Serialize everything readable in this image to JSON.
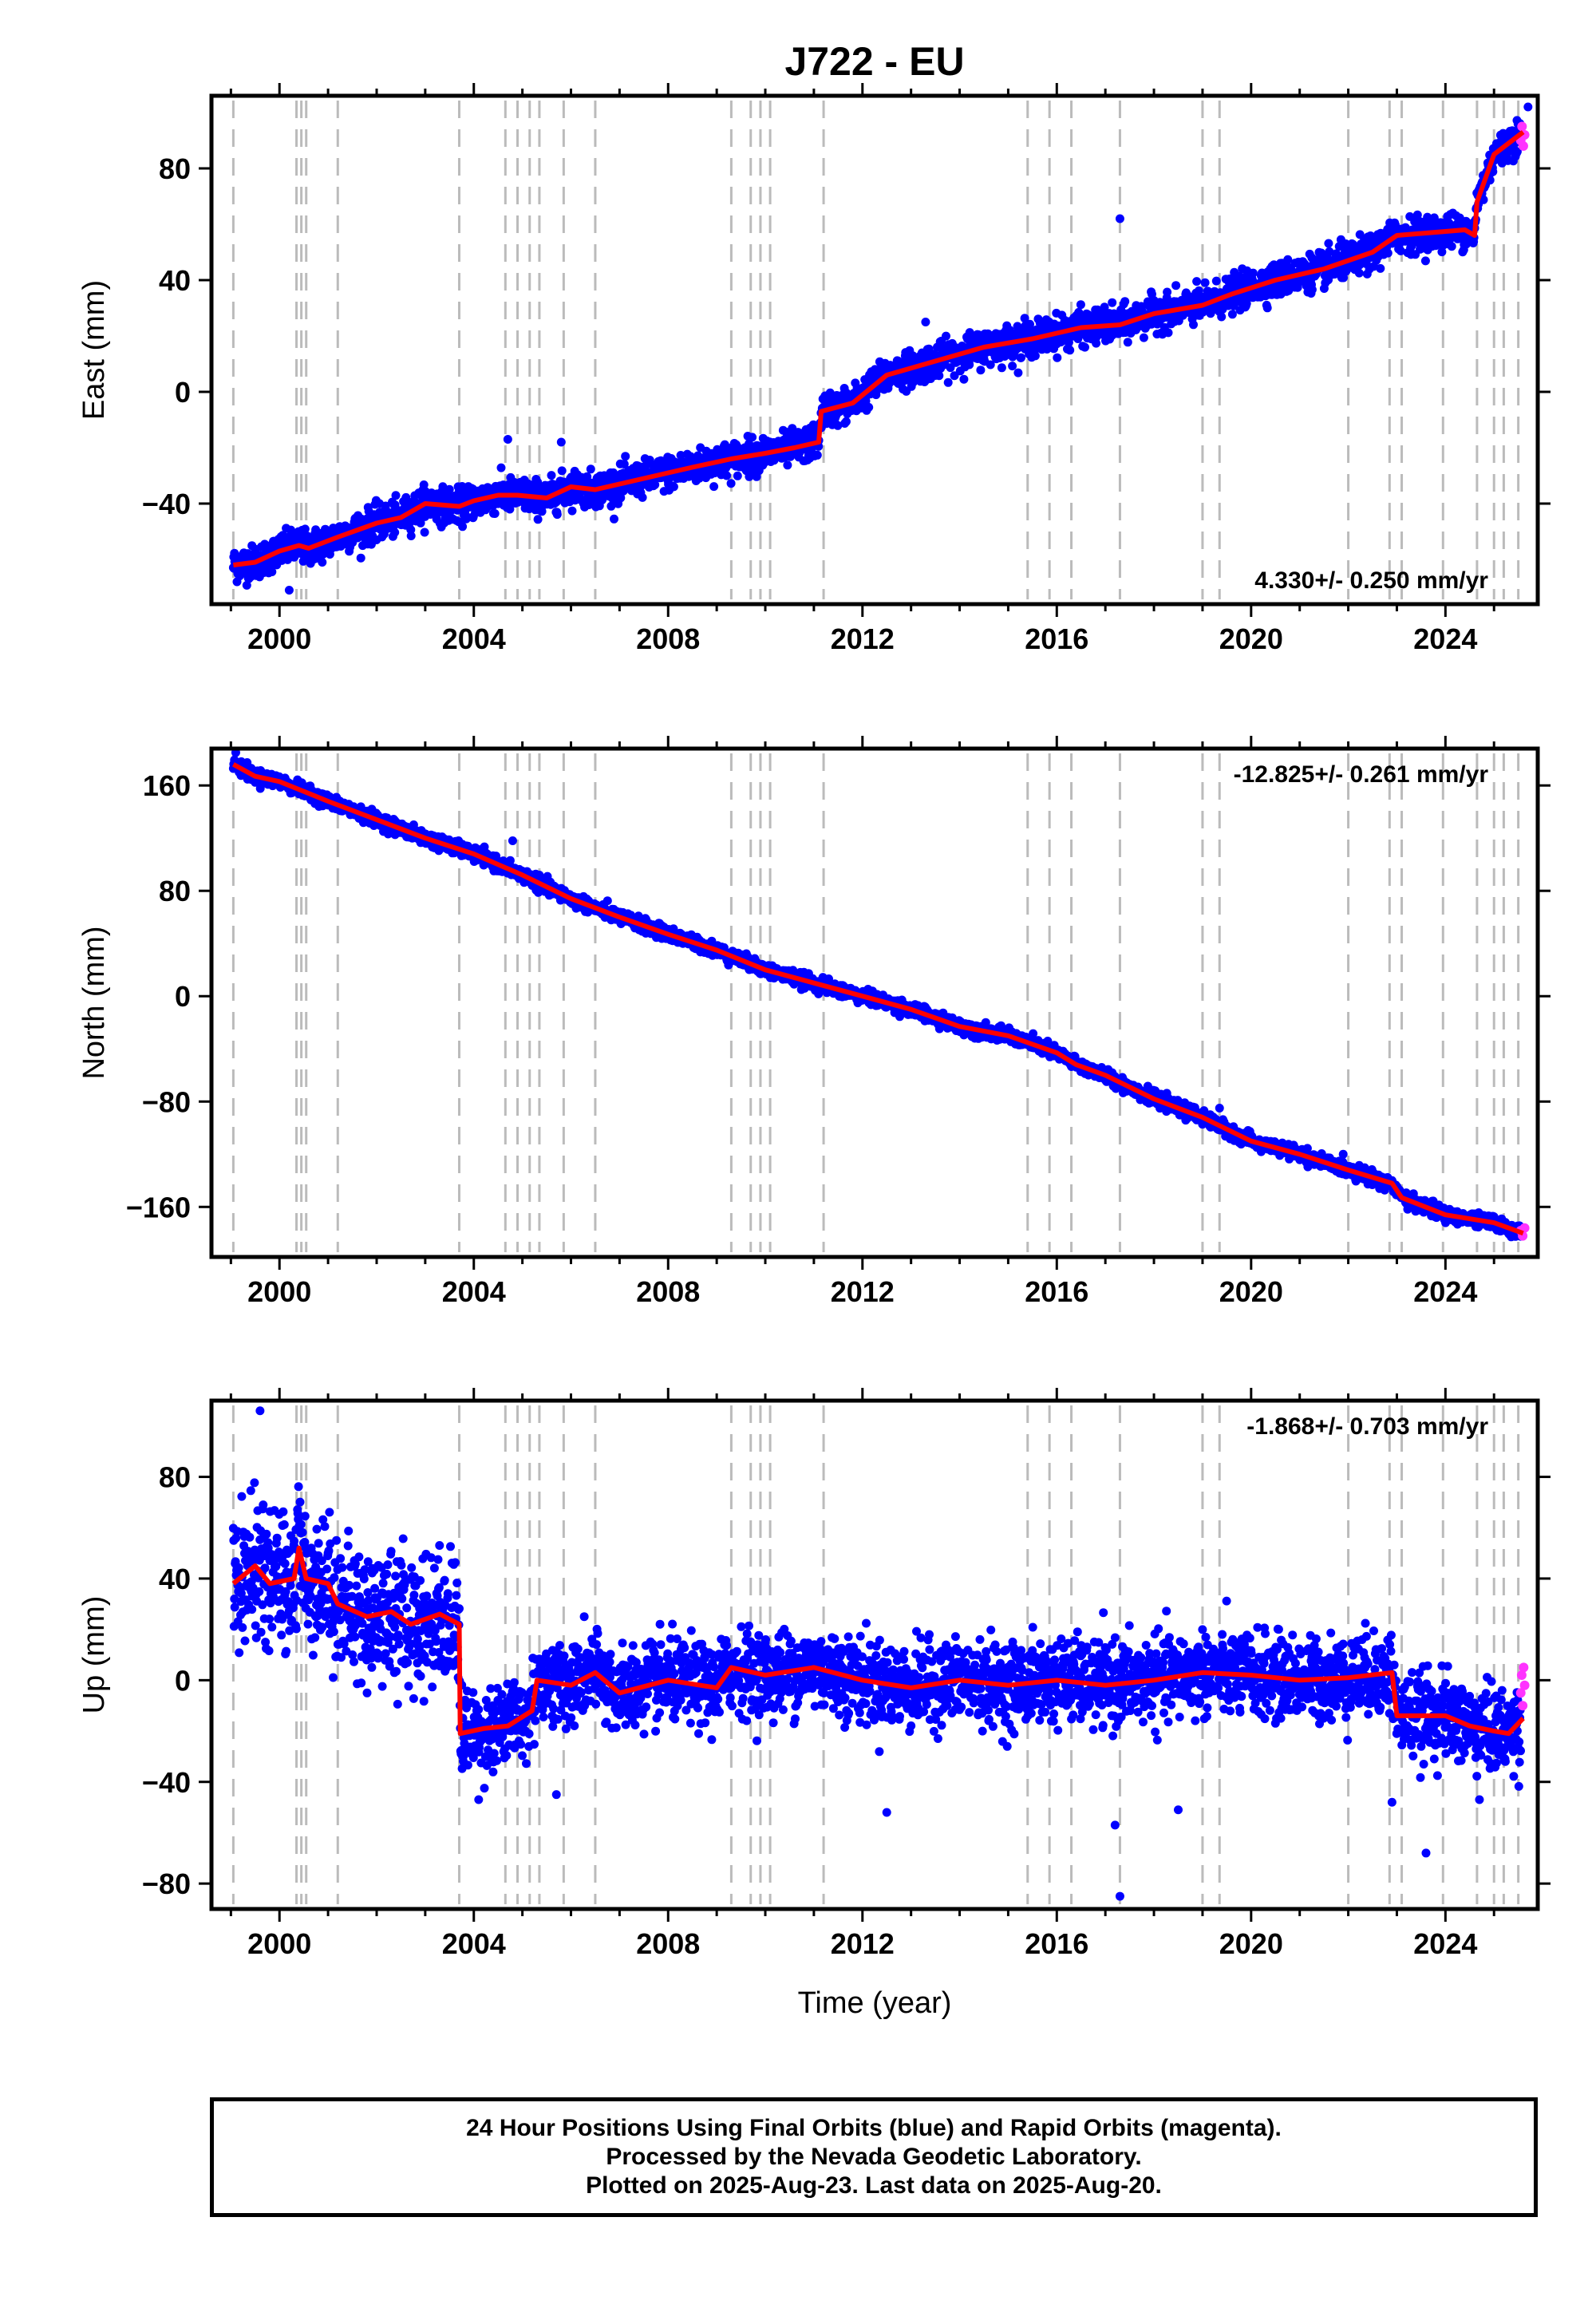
{
  "figure": {
    "title": "J722 - EU",
    "xlabel": "Time (year)"
  },
  "caption": {
    "lines": [
      "24 Hour Positions Using Final Orbits (blue) and Rapid Orbits (magenta).",
      "Processed by the Nevada Geodetic Laboratory.",
      "Plotted on 2025-Aug-23. Last data on 2025-Aug-20."
    ]
  },
  "colors": {
    "final_orbits": "#0000ff",
    "rapid_orbits": "#ff33ff",
    "model_fit": "#ff0000",
    "event_lines": "#bbbbbb"
  },
  "chart_data": [
    {
      "type": "scatter",
      "component": "east",
      "ylabel": "East (mm)",
      "xlim": [
        1998.6,
        2025.9
      ],
      "ylim": [
        -76,
        106
      ],
      "xticks": [
        2000,
        2004,
        2008,
        2012,
        2016,
        2020,
        2024
      ],
      "yticks": [
        -40,
        0,
        40,
        80
      ],
      "rate_text": "4.330+/- 0.250 mm/yr",
      "rate_position": "bottom-right",
      "fit_nodes": [
        [
          1999.05,
          -62
        ],
        [
          1999.5,
          -61
        ],
        [
          2000.0,
          -57
        ],
        [
          2000.4,
          -55
        ],
        [
          2000.6,
          -56
        ],
        [
          2001.2,
          -52
        ],
        [
          2002.0,
          -47
        ],
        [
          2002.5,
          -45
        ],
        [
          2003.0,
          -40
        ],
        [
          2003.7,
          -41
        ],
        [
          2004.0,
          -39
        ],
        [
          2004.5,
          -37
        ],
        [
          2004.9,
          -37
        ],
        [
          2005.5,
          -38
        ],
        [
          2006.0,
          -34
        ],
        [
          2006.5,
          -35
        ],
        [
          2007.5,
          -31
        ],
        [
          2008.5,
          -27
        ],
        [
          2009.3,
          -24
        ],
        [
          2010.0,
          -22
        ],
        [
          2010.6,
          -20
        ],
        [
          2011.1,
          -18
        ],
        [
          2011.15,
          -7
        ],
        [
          2011.8,
          -4
        ],
        [
          2012.5,
          6
        ],
        [
          2013.5,
          11
        ],
        [
          2014.5,
          16
        ],
        [
          2015.5,
          19
        ],
        [
          2016.5,
          23
        ],
        [
          2017.3,
          24
        ],
        [
          2018.0,
          28
        ],
        [
          2019.0,
          31
        ],
        [
          2019.6,
          35
        ],
        [
          2020.5,
          40
        ],
        [
          2021.5,
          44
        ],
        [
          2022.5,
          50
        ],
        [
          2023.0,
          56
        ],
        [
          2023.7,
          57
        ],
        [
          2024.4,
          58
        ],
        [
          2024.6,
          56
        ],
        [
          2024.65,
          68
        ],
        [
          2025.0,
          85
        ],
        [
          2025.6,
          93
        ]
      ],
      "events": [
        1999.05,
        2000.35,
        2000.45,
        2000.55,
        2001.2,
        2003.7,
        2004.65,
        2004.9,
        2005.15,
        2005.35,
        2005.85,
        2006.5,
        2009.3,
        2009.7,
        2009.9,
        2010.1,
        2011.2,
        2015.4,
        2015.85,
        2016.3,
        2017.3,
        2019.0,
        2019.35,
        2022.0,
        2022.85,
        2023.1,
        2023.95,
        2024.65,
        2025.0,
        2025.2,
        2025.5
      ],
      "outliers": [
        [
          2017.3,
          62
        ],
        [
          2004.7,
          -17
        ],
        [
          2005.8,
          -18
        ],
        [
          2013.3,
          25
        ],
        [
          2000.2,
          -71
        ],
        [
          2024.6,
          61
        ],
        [
          2025.7,
          102
        ]
      ],
      "scatter_sigma": 3.0,
      "rapid_range": [
        2025.55,
        2025.63
      ],
      "rapid_values": [
        90,
        95,
        88,
        92
      ]
    },
    {
      "type": "scatter",
      "component": "north",
      "ylabel": "North (mm)",
      "xlim": [
        1998.6,
        2025.9
      ],
      "ylim": [
        -198,
        188
      ],
      "xticks": [
        2000,
        2004,
        2008,
        2012,
        2016,
        2020,
        2024
      ],
      "yticks": [
        -160,
        -80,
        0,
        80,
        160
      ],
      "rate_text": "-12.825+/- 0.261 mm/yr",
      "rate_position": "top-right",
      "fit_nodes": [
        [
          1999.05,
          176
        ],
        [
          1999.5,
          167
        ],
        [
          2000.0,
          163
        ],
        [
          2001.0,
          148
        ],
        [
          2002.0,
          134
        ],
        [
          2003.0,
          120
        ],
        [
          2004.0,
          108
        ],
        [
          2005.0,
          92
        ],
        [
          2006.0,
          74
        ],
        [
          2007.0,
          60
        ],
        [
          2008.0,
          47
        ],
        [
          2009.0,
          35
        ],
        [
          2010.0,
          20
        ],
        [
          2011.0,
          10
        ],
        [
          2012.0,
          0
        ],
        [
          2013.0,
          -10
        ],
        [
          2014.0,
          -23
        ],
        [
          2015.0,
          -30
        ],
        [
          2016.0,
          -43
        ],
        [
          2016.4,
          -52
        ],
        [
          2017.0,
          -60
        ],
        [
          2018.0,
          -78
        ],
        [
          2019.0,
          -92
        ],
        [
          2020.0,
          -110
        ],
        [
          2021.0,
          -120
        ],
        [
          2022.0,
          -132
        ],
        [
          2022.9,
          -142
        ],
        [
          2023.1,
          -153
        ],
        [
          2024.0,
          -166
        ],
        [
          2025.0,
          -172
        ],
        [
          2025.6,
          -180
        ]
      ],
      "events": [
        1999.05,
        2000.35,
        2000.45,
        2000.55,
        2001.2,
        2003.7,
        2004.65,
        2004.9,
        2005.15,
        2005.35,
        2005.85,
        2006.5,
        2009.3,
        2009.7,
        2009.9,
        2010.1,
        2011.2,
        2015.4,
        2015.85,
        2016.3,
        2017.3,
        2019.0,
        2019.35,
        2022.0,
        2022.85,
        2023.1,
        2023.95,
        2024.65,
        2025.0,
        2025.2,
        2025.5
      ],
      "outliers": [
        [
          2019.35,
          -85
        ],
        [
          2004.8,
          118
        ],
        [
          1999.1,
          185
        ]
      ],
      "scatter_sigma": 2.5,
      "rapid_range": [
        2025.55,
        2025.63
      ],
      "rapid_values": [
        -178,
        -182,
        -176
      ]
    },
    {
      "type": "scatter",
      "component": "up",
      "ylabel": "Up (mm)",
      "xlim": [
        1998.6,
        2025.9
      ],
      "ylim": [
        -90,
        110
      ],
      "xticks": [
        2000,
        2004,
        2008,
        2012,
        2016,
        2020,
        2024
      ],
      "yticks": [
        -80,
        -40,
        0,
        40,
        80
      ],
      "rate_text": "-1.868+/- 0.703 mm/yr",
      "rate_position": "top-right",
      "fit_nodes": [
        [
          1999.05,
          38
        ],
        [
          1999.5,
          45
        ],
        [
          1999.8,
          38
        ],
        [
          2000.3,
          40
        ],
        [
          2000.4,
          52
        ],
        [
          2000.55,
          40
        ],
        [
          2001.0,
          38
        ],
        [
          2001.2,
          30
        ],
        [
          2001.8,
          25
        ],
        [
          2002.3,
          27
        ],
        [
          2002.7,
          22
        ],
        [
          2003.3,
          26
        ],
        [
          2003.7,
          22
        ],
        [
          2003.72,
          -21
        ],
        [
          2004.2,
          -19
        ],
        [
          2004.7,
          -18
        ],
        [
          2005.2,
          -12
        ],
        [
          2005.3,
          0
        ],
        [
          2006.0,
          -2
        ],
        [
          2006.5,
          3
        ],
        [
          2007.0,
          -5
        ],
        [
          2008.0,
          0
        ],
        [
          2009.0,
          -3
        ],
        [
          2009.3,
          5
        ],
        [
          2010.0,
          2
        ],
        [
          2011.0,
          5
        ],
        [
          2012.0,
          0
        ],
        [
          2013.0,
          -3
        ],
        [
          2014.0,
          0
        ],
        [
          2015.0,
          -2
        ],
        [
          2016.0,
          0
        ],
        [
          2017.0,
          -2
        ],
        [
          2018.0,
          0
        ],
        [
          2019.0,
          3
        ],
        [
          2020.0,
          2
        ],
        [
          2021.0,
          0
        ],
        [
          2022.0,
          1
        ],
        [
          2022.9,
          3
        ],
        [
          2023.0,
          -14
        ],
        [
          2024.0,
          -14
        ],
        [
          2024.5,
          -18
        ],
        [
          2025.0,
          -20
        ],
        [
          2025.3,
          -21
        ],
        [
          2025.6,
          -15
        ]
      ],
      "events": [
        1999.05,
        2000.35,
        2000.45,
        2000.55,
        2001.2,
        2003.7,
        2004.65,
        2004.9,
        2005.15,
        2005.35,
        2005.85,
        2006.5,
        2009.3,
        2009.7,
        2009.9,
        2010.1,
        2011.2,
        2015.4,
        2015.85,
        2016.3,
        2017.3,
        2019.0,
        2019.35,
        2022.0,
        2022.85,
        2023.1,
        2023.95,
        2024.65,
        2025.0,
        2025.2,
        2025.5
      ],
      "outliers": [
        [
          1999.6,
          106
        ],
        [
          2017.3,
          -85
        ],
        [
          2017.2,
          -57
        ],
        [
          2012.5,
          -52
        ],
        [
          2018.5,
          -51
        ],
        [
          2023.6,
          -68
        ],
        [
          2004.1,
          -47
        ],
        [
          2005.7,
          -45
        ],
        [
          2022.9,
          -48
        ],
        [
          2024.7,
          -47
        ]
      ],
      "scatter_sigma": 8.0,
      "rapid_range": [
        2025.55,
        2025.63
      ],
      "rapid_values": [
        -5,
        2,
        -10,
        5,
        -2
      ]
    }
  ]
}
